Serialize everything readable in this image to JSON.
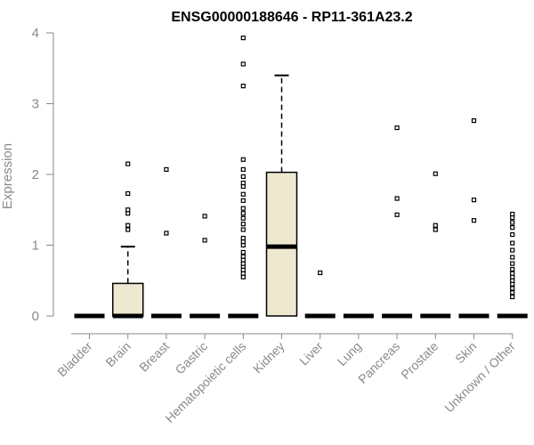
{
  "chart_data": {
    "type": "box",
    "title": "ENSG00000188646 - RP11-361A23.2",
    "xlabel": "",
    "ylabel": "Expression",
    "ylim": [
      0,
      4
    ],
    "yticks": [
      0,
      1,
      2,
      3,
      4
    ],
    "box_fill": "#EEE8D0",
    "categories": [
      "Bladder",
      "Brain",
      "Breast",
      "Gastric",
      "Hematopoietic cells",
      "Kidney",
      "Liver",
      "Lung",
      "Pancreas",
      "Prostate",
      "Skin",
      "Unknown / Other"
    ],
    "boxes": [
      {
        "category": "Bladder",
        "min": 0,
        "q1": 0,
        "median": 0,
        "q3": 0,
        "max": 0,
        "outliers": []
      },
      {
        "category": "Brain",
        "min": 0,
        "q1": 0,
        "median": 0,
        "q3": 0.46,
        "max": 0.98,
        "outliers": [
          1.22,
          1.28,
          1.45,
          1.5,
          1.73,
          2.15
        ]
      },
      {
        "category": "Breast",
        "min": 0,
        "q1": 0,
        "median": 0,
        "q3": 0,
        "max": 0,
        "outliers": [
          1.17,
          2.07
        ]
      },
      {
        "category": "Gastric",
        "min": 0,
        "q1": 0,
        "median": 0,
        "q3": 0,
        "max": 0,
        "outliers": [
          1.07,
          1.41
        ]
      },
      {
        "category": "Hematopoietic cells",
        "min": 0,
        "q1": 0,
        "median": 0,
        "q3": 0,
        "max": 0,
        "outliers": [
          0.55,
          0.6,
          0.65,
          0.7,
          0.74,
          0.79,
          0.84,
          0.9,
          1.0,
          1.05,
          1.1,
          1.22,
          1.3,
          1.38,
          1.45,
          1.52,
          1.63,
          1.72,
          1.83,
          1.88,
          1.97,
          2.07,
          2.21,
          3.25,
          3.56,
          3.93
        ]
      },
      {
        "category": "Kidney",
        "min": 0,
        "q1": 0,
        "median": 0.98,
        "q3": 2.03,
        "max": 3.4,
        "outliers": []
      },
      {
        "category": "Liver",
        "min": 0,
        "q1": 0,
        "median": 0,
        "q3": 0,
        "max": 0,
        "outliers": [
          0.61
        ]
      },
      {
        "category": "Lung",
        "min": 0,
        "q1": 0,
        "median": 0,
        "q3": 0,
        "max": 0,
        "outliers": []
      },
      {
        "category": "Pancreas",
        "min": 0,
        "q1": 0,
        "median": 0,
        "q3": 0,
        "max": 0,
        "outliers": [
          1.43,
          1.66,
          2.66
        ]
      },
      {
        "category": "Prostate",
        "min": 0,
        "q1": 0,
        "median": 0,
        "q3": 0,
        "max": 0,
        "outliers": [
          1.22,
          1.28,
          2.01
        ]
      },
      {
        "category": "Skin",
        "min": 0,
        "q1": 0,
        "median": 0,
        "q3": 0,
        "max": 0,
        "outliers": [
          1.35,
          1.64,
          2.76
        ]
      },
      {
        "category": "Unknown / Other",
        "min": 0,
        "q1": 0,
        "median": 0,
        "q3": 0,
        "max": 0,
        "outliers": [
          0.27,
          0.33,
          0.39,
          0.45,
          0.5,
          0.55,
          0.6,
          0.66,
          0.74,
          0.83,
          0.93,
          1.03,
          1.15,
          1.25,
          1.32,
          1.39,
          1.44
        ]
      }
    ]
  }
}
